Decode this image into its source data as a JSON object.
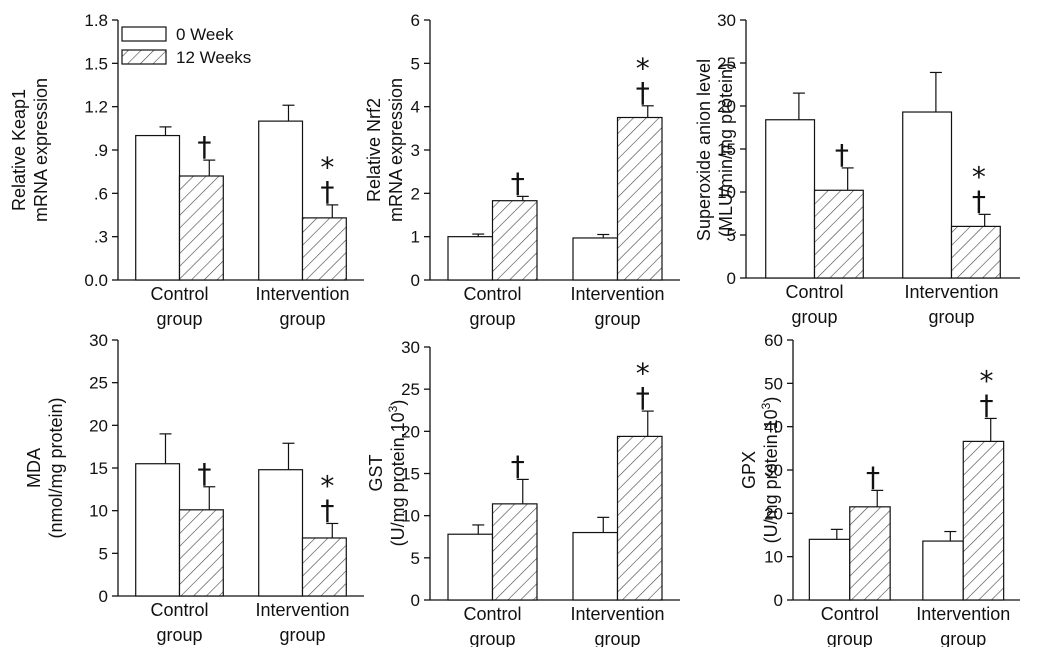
{
  "legend": [
    {
      "label": "0 Week",
      "pattern": "open"
    },
    {
      "label": "12 Weeks",
      "pattern": "hatched"
    }
  ],
  "chart_data": [
    {
      "type": "bar",
      "ylabel_lines": [
        "Relative Keap1",
        "mRNA expression"
      ],
      "ylim": [
        0,
        1.8
      ],
      "yticks": [
        "0.0",
        ".3",
        ".6",
        ".9",
        "1.2",
        "1.5",
        "1.8"
      ],
      "categories": [
        [
          "Control",
          "group"
        ],
        [
          "Intervention",
          "group"
        ]
      ],
      "series": [
        {
          "name": "0 Week",
          "values": [
            1.0,
            1.1
          ],
          "errors": [
            0.06,
            0.11
          ]
        },
        {
          "name": "12 Weeks",
          "values": [
            0.72,
            0.43
          ],
          "errors": [
            0.11,
            0.09
          ]
        }
      ],
      "annotations": [
        [
          "†",
          "†"
        ],
        [
          "*",
          "†"
        ]
      ]
    },
    {
      "type": "bar",
      "ylabel_lines": [
        "Relative Nrf2",
        "mRNA expression"
      ],
      "ylim": [
        0,
        6
      ],
      "yticks": [
        "0",
        "1",
        "2",
        "3",
        "4",
        "5",
        "6"
      ],
      "categories": [
        [
          "Control",
          "group"
        ],
        [
          "Intervention",
          "group"
        ]
      ],
      "series": [
        {
          "name": "0 Week",
          "values": [
            1.0,
            0.97
          ],
          "errors": [
            0.06,
            0.08
          ]
        },
        {
          "name": "12 Weeks",
          "values": [
            1.83,
            3.75
          ],
          "errors": [
            0.1,
            0.27
          ]
        }
      ],
      "annotations": [
        [
          "†",
          "†"
        ],
        [
          "*",
          "†"
        ]
      ]
    },
    {
      "type": "bar",
      "ylabel_lines": [
        "Superoxide anion level",
        "(MLU/min/mg protein)"
      ],
      "ylim": [
        0,
        30
      ],
      "yticks": [
        "0",
        "5",
        "10",
        "15",
        "20",
        "25",
        "30"
      ],
      "categories": [
        [
          "Control",
          "group"
        ],
        [
          "Intervention",
          "group"
        ]
      ],
      "series": [
        {
          "name": "0 Week",
          "values": [
            18.4,
            19.3
          ],
          "errors": [
            3.1,
            4.6
          ]
        },
        {
          "name": "12 Weeks",
          "values": [
            10.2,
            6.0
          ],
          "errors": [
            2.6,
            1.4
          ]
        }
      ],
      "annotations": [
        [
          "†",
          "†"
        ],
        [
          "*",
          "†"
        ]
      ]
    },
    {
      "type": "bar",
      "ylabel_lines": [
        "MDA",
        "(nmol/mg protein)"
      ],
      "ylim": [
        0,
        30
      ],
      "yticks": [
        "0",
        "5",
        "10",
        "15",
        "20",
        "25",
        "30"
      ],
      "categories": [
        [
          "Control",
          "group"
        ],
        [
          "Intervention",
          "group"
        ]
      ],
      "series": [
        {
          "name": "0 Week",
          "values": [
            15.5,
            14.8
          ],
          "errors": [
            3.5,
            3.1
          ]
        },
        {
          "name": "12 Weeks",
          "values": [
            10.1,
            6.8
          ],
          "errors": [
            2.7,
            1.7
          ]
        }
      ],
      "annotations": [
        [
          "†",
          "†"
        ],
        [
          "*",
          "†"
        ]
      ]
    },
    {
      "type": "bar",
      "ylabel_lines": [
        "GST",
        "(U/mg protein,10",
        "3",
        ")"
      ],
      "ylim": [
        0,
        30
      ],
      "yticks": [
        "0",
        "5",
        "10",
        "15",
        "20",
        "25",
        "30"
      ],
      "categories": [
        [
          "Control",
          "group"
        ],
        [
          "Intervention",
          "group"
        ]
      ],
      "series": [
        {
          "name": "0 Week",
          "values": [
            7.8,
            8.0
          ],
          "errors": [
            1.1,
            1.8
          ]
        },
        {
          "name": "12 Weeks",
          "values": [
            11.4,
            19.4
          ],
          "errors": [
            2.9,
            3.0
          ]
        }
      ],
      "annotations": [
        [
          "†",
          "†"
        ],
        [
          "*",
          "†"
        ]
      ]
    },
    {
      "type": "bar",
      "ylabel_lines": [
        "GPX",
        "(U/mg protein,10",
        "3",
        ")"
      ],
      "ylim": [
        0,
        60
      ],
      "yticks": [
        "0",
        "10",
        "20",
        "30",
        "40",
        "50",
        "60"
      ],
      "categories": [
        [
          "Control",
          "group"
        ],
        [
          "Intervention",
          "group"
        ]
      ],
      "series": [
        {
          "name": "0 Week",
          "values": [
            14.0,
            13.6
          ],
          "errors": [
            2.3,
            2.2
          ]
        },
        {
          "name": "12 Weeks",
          "values": [
            21.5,
            36.6
          ],
          "errors": [
            3.8,
            5.3
          ]
        }
      ],
      "annotations": [
        [
          "†",
          "†"
        ],
        [
          "*",
          "†"
        ]
      ]
    }
  ]
}
